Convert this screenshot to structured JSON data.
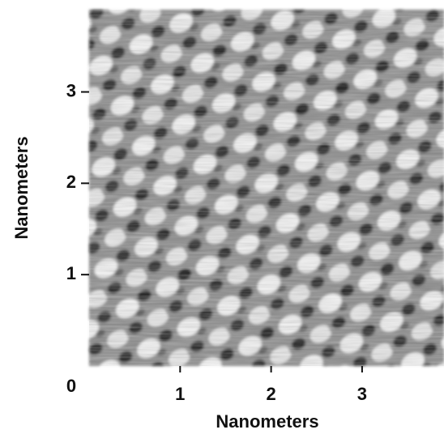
{
  "chart_data": {
    "type": "image",
    "xlabel": "Nanometers",
    "ylabel": "Nanometers",
    "xlim": [
      0,
      3.9
    ],
    "ylim": [
      0,
      3.9
    ],
    "xticks": [
      0,
      1,
      2,
      3
    ],
    "yticks": [
      1,
      2,
      3
    ]
  }
}
